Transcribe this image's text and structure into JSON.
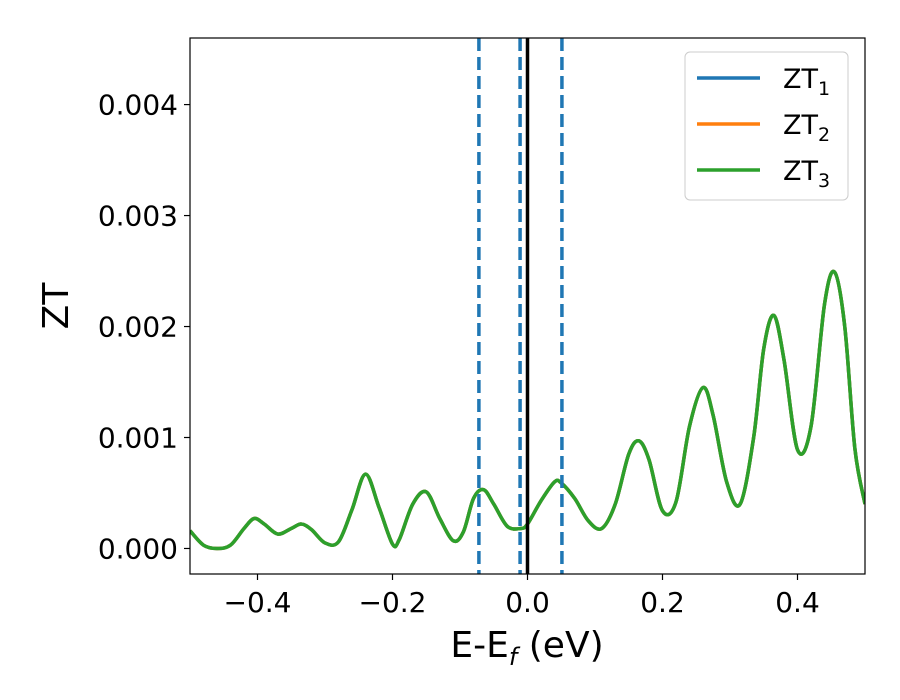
{
  "chart_data": {
    "type": "line",
    "xlabel": {
      "main": "E-E",
      "sub": "f",
      "unit": " (eV)"
    },
    "ylabel": "ZT",
    "xlim": [
      -0.5,
      0.5
    ],
    "ylim": [
      -0.00023,
      0.0046
    ],
    "grid": false,
    "legend_position": "top-right",
    "xticks": [
      -0.4,
      -0.2,
      0.0,
      0.2,
      0.4
    ],
    "xtick_labels": [
      "−0.4",
      "−0.2",
      "0.0",
      "0.2",
      "0.4"
    ],
    "yticks": [
      0.0,
      0.001,
      0.002,
      0.003,
      0.004
    ],
    "ytick_labels": [
      "0.000",
      "0.001",
      "0.002",
      "0.003",
      "0.004"
    ],
    "vlines": [
      {
        "x": -0.072,
        "style": "dashed",
        "color": "#1f77b4"
      },
      {
        "x": -0.011,
        "style": "dashed",
        "color": "#1f77b4"
      },
      {
        "x": 0.051,
        "style": "dashed",
        "color": "#1f77b4"
      },
      {
        "x": 0.0,
        "style": "solid",
        "color": "#000000"
      }
    ],
    "x": [
      -0.5,
      -0.48,
      -0.46,
      -0.44,
      -0.42,
      -0.405,
      -0.39,
      -0.37,
      -0.35,
      -0.335,
      -0.32,
      -0.3,
      -0.28,
      -0.26,
      -0.24,
      -0.22,
      -0.2,
      -0.19,
      -0.17,
      -0.15,
      -0.13,
      -0.11,
      -0.095,
      -0.08,
      -0.065,
      -0.05,
      -0.03,
      -0.01,
      0.0,
      0.02,
      0.04,
      0.05,
      0.07,
      0.09,
      0.11,
      0.13,
      0.15,
      0.165,
      0.18,
      0.2,
      0.22,
      0.24,
      0.26,
      0.275,
      0.295,
      0.315,
      0.335,
      0.35,
      0.365,
      0.38,
      0.4,
      0.42,
      0.44,
      0.455,
      0.47,
      0.485,
      0.5
    ],
    "series": [
      {
        "name_main": "ZT",
        "name_sub": "1",
        "color": "#1f77b4",
        "values": [
          0.00016,
          3e-05,
          0.0,
          3e-05,
          0.00018,
          0.00027,
          0.00022,
          0.00013,
          0.00018,
          0.00022,
          0.00017,
          5e-05,
          6e-05,
          0.00035,
          0.00067,
          0.00037,
          4e-05,
          8e-05,
          0.0004,
          0.00051,
          0.00027,
          7e-05,
          0.00015,
          0.00045,
          0.00053,
          0.0004,
          0.0002,
          0.00018,
          0.00022,
          0.00043,
          0.0006,
          0.00059,
          0.00045,
          0.00025,
          0.00018,
          0.0004,
          0.00085,
          0.00097,
          0.0008,
          0.00034,
          0.00042,
          0.0011,
          0.00145,
          0.0012,
          0.0006,
          0.0004,
          0.001,
          0.0018,
          0.0021,
          0.0017,
          0.00089,
          0.0011,
          0.0022,
          0.00249,
          0.002,
          0.0009,
          0.0004
        ]
      },
      {
        "name_main": "ZT",
        "name_sub": "2",
        "color": "#ff7f0e",
        "values": [
          0.00016,
          3e-05,
          0.0,
          3e-05,
          0.00018,
          0.00027,
          0.00022,
          0.00013,
          0.00018,
          0.00022,
          0.00017,
          5e-05,
          6e-05,
          0.00035,
          0.00067,
          0.00037,
          4e-05,
          8e-05,
          0.0004,
          0.00051,
          0.00027,
          7e-05,
          0.00015,
          0.00045,
          0.00053,
          0.0004,
          0.0002,
          0.00018,
          0.00022,
          0.00043,
          0.0006,
          0.00059,
          0.00045,
          0.00025,
          0.00018,
          0.0004,
          0.00085,
          0.00097,
          0.0008,
          0.00034,
          0.00042,
          0.0011,
          0.00145,
          0.0012,
          0.0006,
          0.0004,
          0.001,
          0.0018,
          0.0021,
          0.0017,
          0.00089,
          0.0011,
          0.0022,
          0.00249,
          0.002,
          0.0009,
          0.0004
        ]
      },
      {
        "name_main": "ZT",
        "name_sub": "3",
        "color": "#2ca02c",
        "values": [
          0.00016,
          3e-05,
          0.0,
          3e-05,
          0.00018,
          0.00027,
          0.00022,
          0.00013,
          0.00018,
          0.00022,
          0.00017,
          5e-05,
          6e-05,
          0.00035,
          0.00067,
          0.00037,
          4e-05,
          8e-05,
          0.0004,
          0.00051,
          0.00027,
          7e-05,
          0.00015,
          0.00045,
          0.00053,
          0.0004,
          0.0002,
          0.00018,
          0.00022,
          0.00043,
          0.0006,
          0.00059,
          0.00045,
          0.00025,
          0.00018,
          0.0004,
          0.00085,
          0.00097,
          0.0008,
          0.00034,
          0.00042,
          0.0011,
          0.00145,
          0.0012,
          0.0006,
          0.0004,
          0.001,
          0.0018,
          0.0021,
          0.0017,
          0.00089,
          0.0011,
          0.0022,
          0.00249,
          0.002,
          0.0009,
          0.0004
        ]
      }
    ]
  }
}
